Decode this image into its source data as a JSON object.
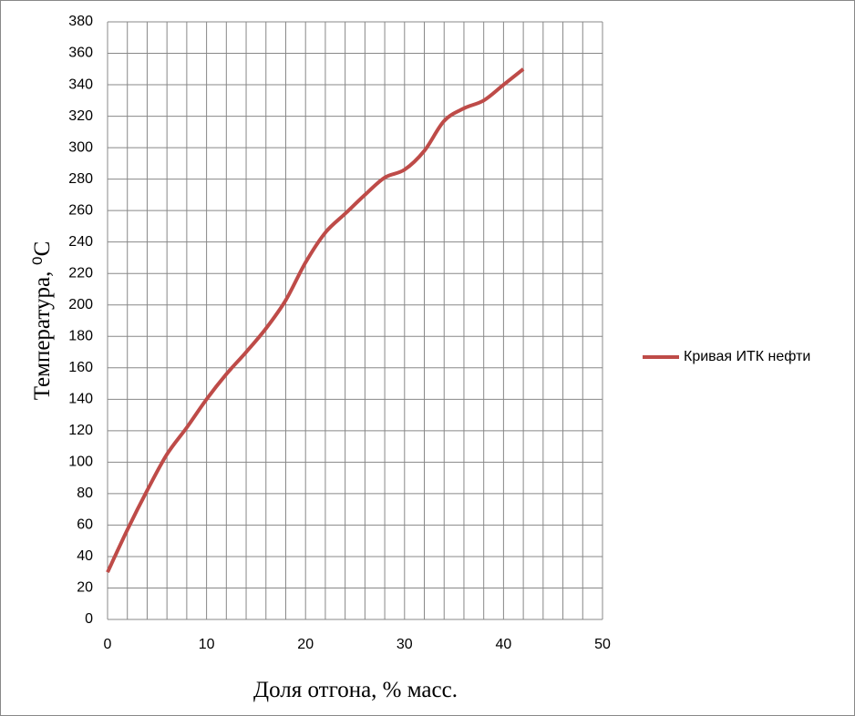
{
  "chart_data": {
    "type": "line",
    "x_label": "Доля отгона, % масс.",
    "y_label": "Температура, ⁰С",
    "x": [
      0,
      2,
      4,
      6,
      8,
      10,
      12,
      14,
      16,
      18,
      20,
      22,
      24,
      26,
      28,
      30,
      32,
      34,
      36,
      38,
      40,
      42
    ],
    "series": [
      {
        "name": "Кривая ИТК нефти",
        "color": "#be4b48",
        "values": [
          30,
          57,
          82,
          105,
          122,
          140,
          156,
          170,
          185,
          203,
          227,
          246,
          258,
          270,
          281,
          286,
          298,
          317,
          325,
          330,
          340,
          350
        ]
      }
    ],
    "xlim": [
      0,
      50
    ],
    "xticks": [
      0,
      10,
      20,
      30,
      40,
      50
    ],
    "xgrid": [
      2,
      4,
      6,
      8,
      12,
      14,
      16,
      18,
      22,
      24,
      26,
      28,
      32,
      34,
      36,
      38,
      42,
      44,
      46,
      48
    ],
    "ylim": [
      0,
      380
    ],
    "yticks": [
      0,
      20,
      40,
      60,
      80,
      100,
      120,
      140,
      160,
      180,
      200,
      220,
      240,
      260,
      280,
      300,
      320,
      340,
      360,
      380
    ],
    "grid": true,
    "legend": "right"
  }
}
